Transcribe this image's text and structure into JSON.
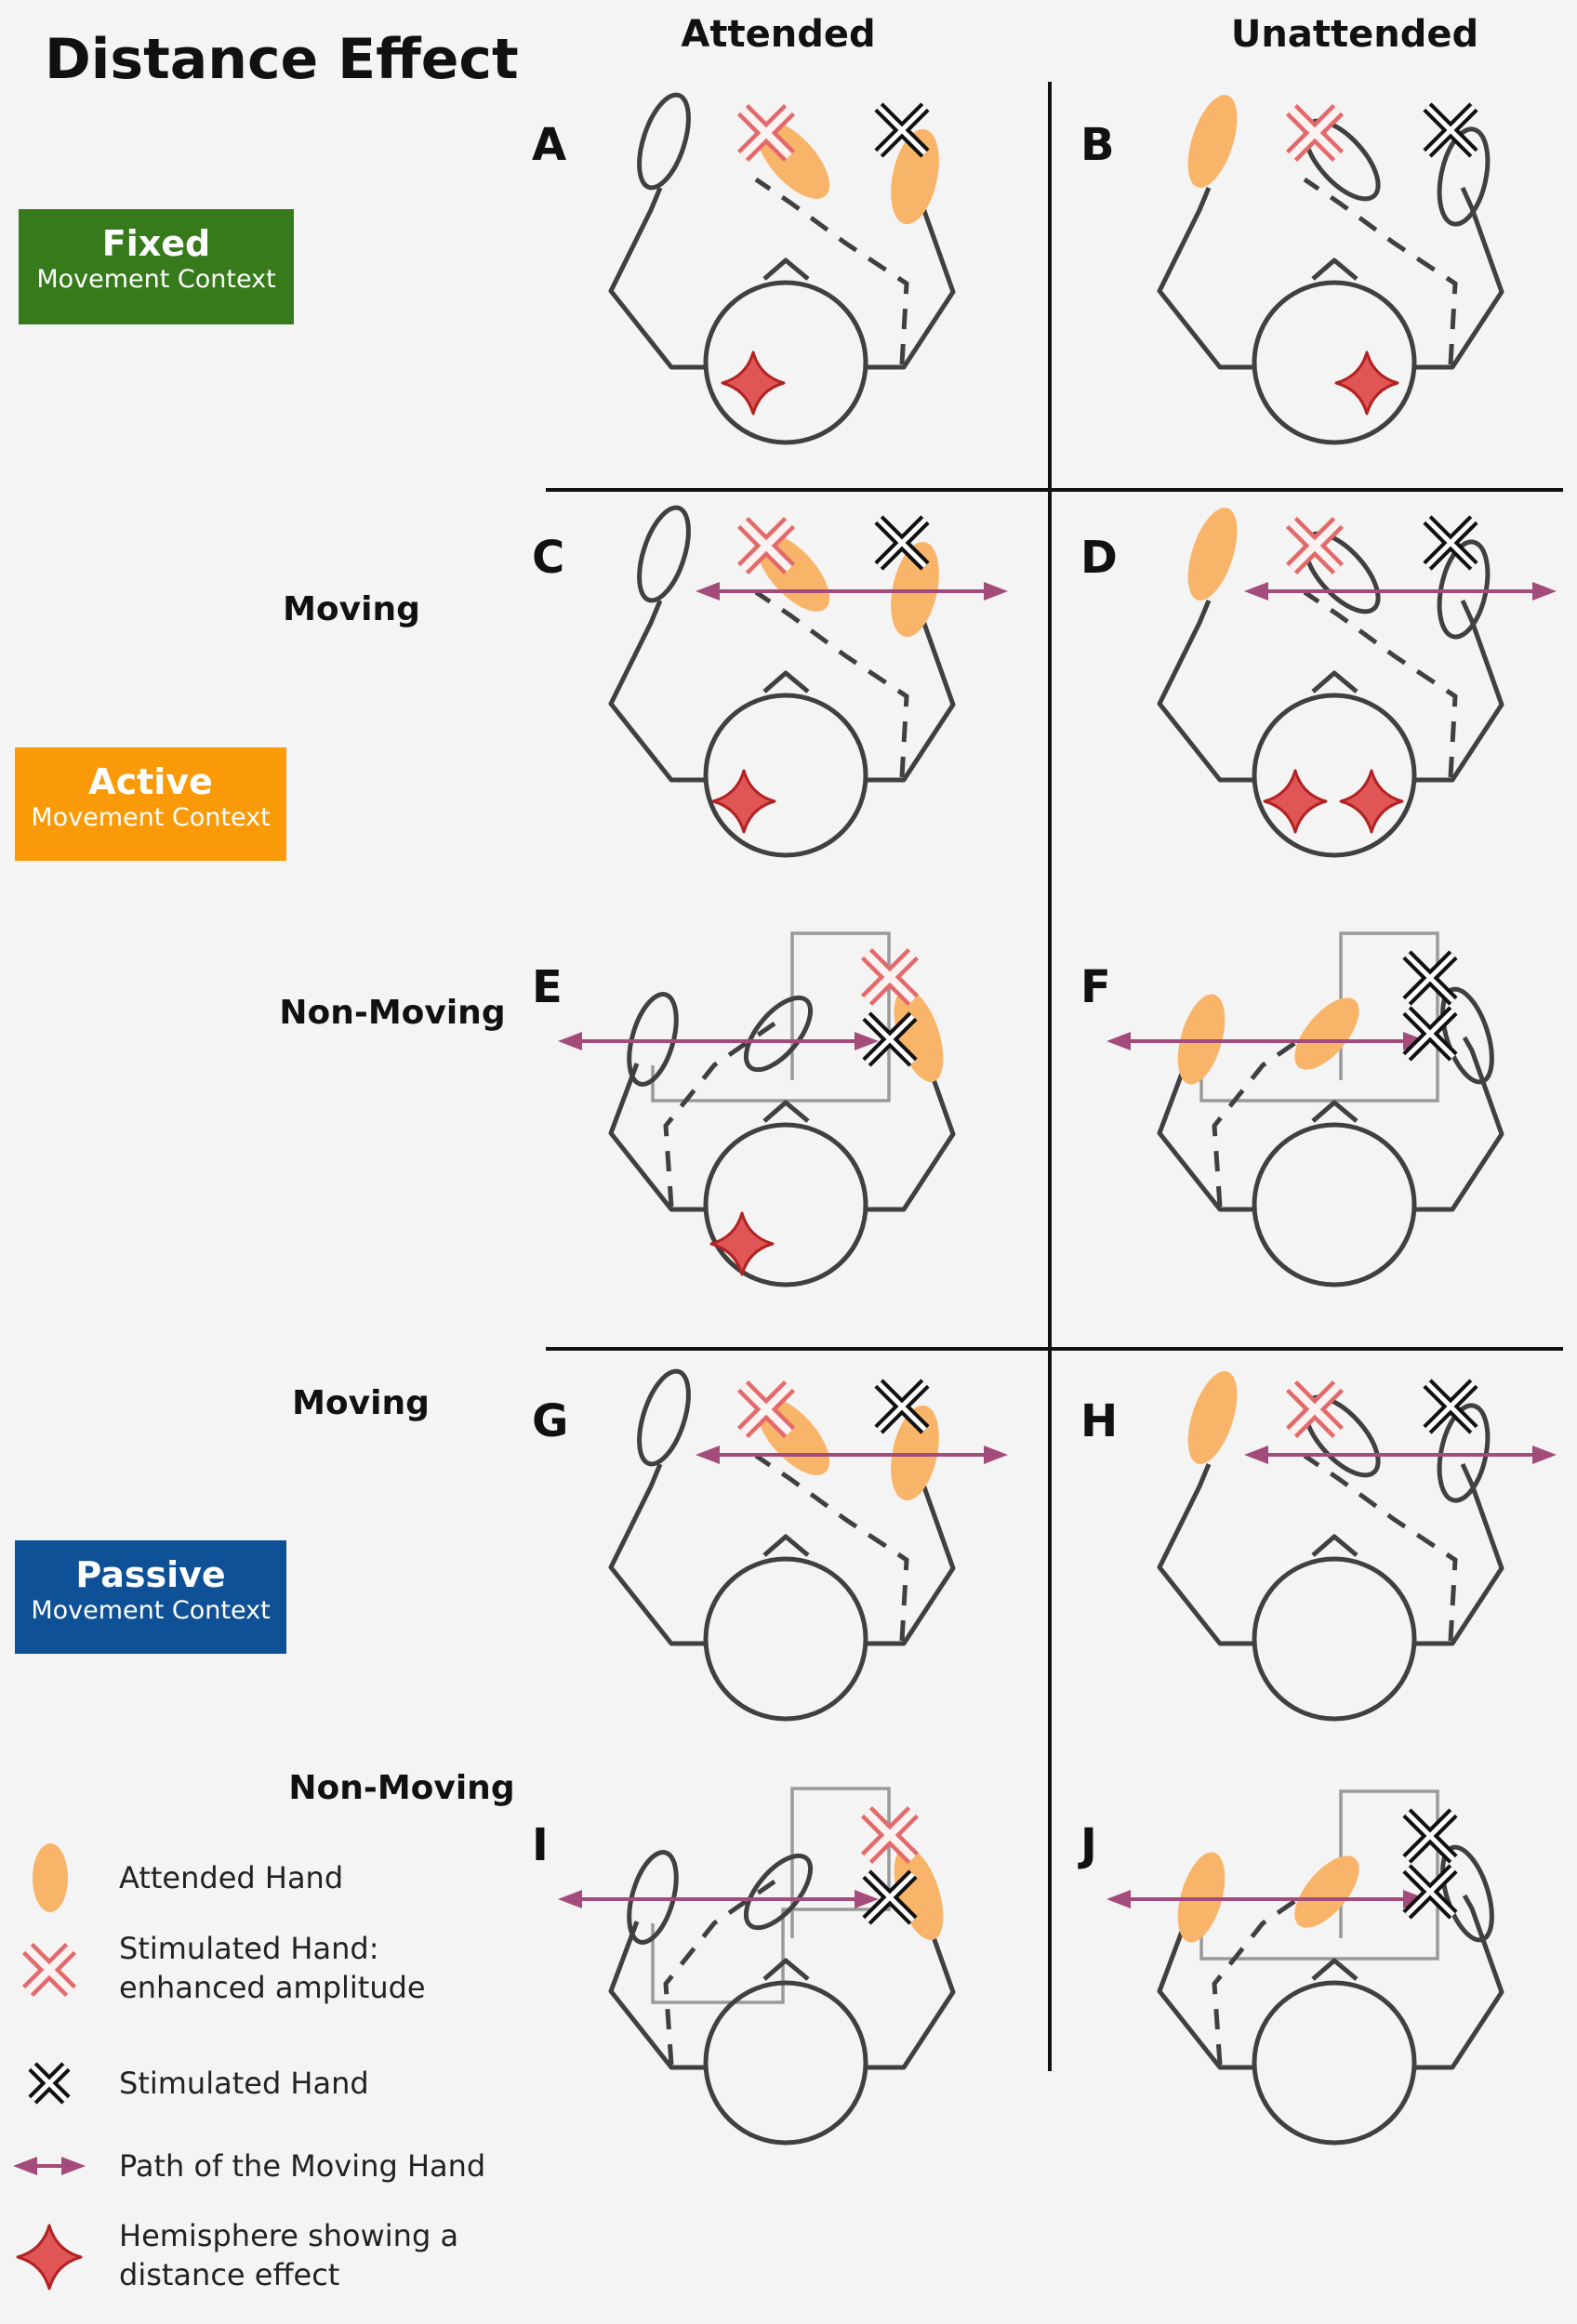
{
  "title": "Distance Effect",
  "columns": [
    "Attended",
    "Unattended"
  ],
  "contexts": [
    {
      "name": "Fixed",
      "sub": "Movement Context",
      "color": "#377a1c"
    },
    {
      "name": "Active",
      "sub": "Movement Context",
      "color": "#fb9a08"
    },
    {
      "name": "Passive",
      "sub": "Movement Context",
      "color": "#0f5196"
    }
  ],
  "row_labels": {
    "moving": "Moving",
    "non_moving": "Non-Moving"
  },
  "panels": [
    "A",
    "B",
    "C",
    "D",
    "E",
    "F",
    "G",
    "H",
    "I",
    "J"
  ],
  "legend": [
    {
      "icon": "attended-hand",
      "lines": [
        "Attended Hand"
      ]
    },
    {
      "icon": "enhanced-x",
      "lines": [
        "Stimulated Hand:",
        "enhanced amplitude"
      ]
    },
    {
      "icon": "black-x",
      "lines": [
        "Stimulated Hand"
      ]
    },
    {
      "icon": "arrow",
      "lines": [
        "Path of the Moving Hand"
      ]
    },
    {
      "icon": "diamond",
      "lines": [
        "Hemisphere showing a",
        "distance effect"
      ]
    }
  ],
  "colors": {
    "attended_fill": "#f8b469",
    "enhanced_x": "#e36a6a",
    "diamond_fill": "#e05555",
    "diamond_stroke": "#b22222",
    "arrow": "#a34b7a",
    "line": "#404040",
    "box": "#9a9a9a"
  }
}
